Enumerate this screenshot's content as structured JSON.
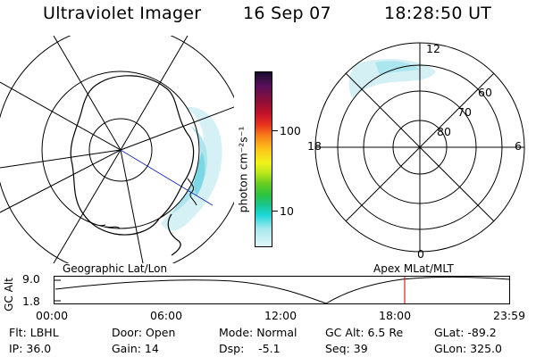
{
  "header": {
    "instrument": "Ultraviolet Imager",
    "date": "16 Sep 07",
    "time": "18:28:50 UT"
  },
  "geo_panel": {
    "label": "Geographic Lat/Lon"
  },
  "colorbar": {
    "unit_label": "photon cm⁻²s⁻¹",
    "ticks": [
      "100",
      "10"
    ],
    "scale": "log",
    "colors": [
      "#1a0d2e",
      "#5a0f5a",
      "#8a0f3a",
      "#c4122a",
      "#e8321e",
      "#f7781a",
      "#fcc319",
      "#f2f21a",
      "#b8e61a",
      "#66cc22",
      "#2ec43c",
      "#19c48a",
      "#1ad8d8",
      "#a6e8ee",
      "#dff5f7"
    ]
  },
  "mlt_panel": {
    "label": "Apex  MLat/MLT",
    "mlt_labels": [
      "12",
      "18",
      "6",
      "0"
    ],
    "lat_labels": [
      "60",
      "70",
      "80"
    ]
  },
  "altitude_strip": {
    "ylabel": "GC Alt",
    "yticks": [
      "9.0",
      "1.8"
    ],
    "xticks": [
      "00:00",
      "06:00",
      "12:00",
      "18:00",
      "23:59"
    ],
    "current_time": "18:28:50"
  },
  "status": {
    "row1": [
      {
        "key": "Flt: LBHL"
      },
      {
        "key": "Door: Open"
      },
      {
        "key": "Mode: Normal"
      },
      {
        "key": "GC Alt: 6.5 Re"
      },
      {
        "key": "GLat: -89.2"
      }
    ],
    "row2": [
      {
        "key": "IP: 36.0"
      },
      {
        "key": "Gain: 14"
      },
      {
        "key": "Dsp:    -5.1"
      },
      {
        "key": "Seq: 39"
      },
      {
        "key": "GLon: 325.0"
      }
    ]
  }
}
